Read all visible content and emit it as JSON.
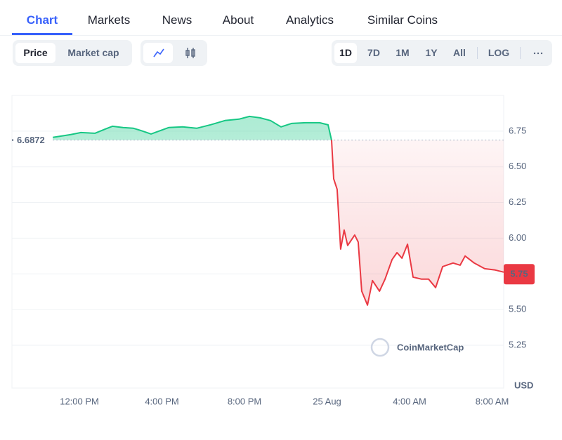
{
  "tabs": [
    "Chart",
    "Markets",
    "News",
    "About",
    "Analytics",
    "Similar Coins"
  ],
  "metric_toggle": [
    "Price",
    "Market cap"
  ],
  "ranges": [
    "1D",
    "7D",
    "1M",
    "1Y",
    "All",
    "LOG"
  ],
  "chart_data": {
    "type": "line",
    "x": [
      -1.29,
      -0.44,
      0.07,
      0.75,
      1.26,
      1.6,
      2.11,
      2.62,
      2.96,
      3.47,
      4.32,
      5.0,
      5.68,
      6.37,
      7.05,
      7.73,
      8.24,
      8.75,
      9.26,
      9.77,
      10.28,
      10.96,
      11.64,
      12.05,
      12.22,
      12.32,
      12.49,
      12.66,
      12.83,
      13.0,
      13.34,
      13.51,
      13.68,
      13.96,
      14.2,
      14.54,
      14.81,
      15.15,
      15.39,
      15.63,
      15.9,
      16.17,
      16.58,
      16.92,
      17.26,
      17.6,
      18.11,
      18.45,
      18.69,
      19.13,
      19.64,
      20.15,
      20.56
    ],
    "series": [
      {
        "name": "Price",
        "up_color": "#16c784",
        "down_color": "#ea3943",
        "values": [
          6.706,
          6.725,
          6.74,
          6.735,
          6.765,
          6.784,
          6.775,
          6.77,
          6.755,
          6.73,
          6.775,
          6.78,
          6.77,
          6.795,
          6.824,
          6.834,
          6.853,
          6.843,
          6.824,
          6.78,
          6.804,
          6.809,
          6.809,
          6.794,
          6.686,
          6.416,
          6.342,
          5.924,
          6.057,
          5.949,
          6.022,
          5.973,
          5.629,
          5.531,
          5.703,
          5.629,
          5.713,
          5.85,
          5.899,
          5.86,
          5.958,
          5.727,
          5.713,
          5.713,
          5.654,
          5.801,
          5.826,
          5.811,
          5.875,
          5.826,
          5.786,
          5.777,
          5.762
        ]
      }
    ],
    "reference_line": 6.6872,
    "current_price": 5.75,
    "y_unit": "USD",
    "watermark": "CoinMarketCap",
    "xlim": [
      -3.27,
      20.56
    ],
    "xticks": [
      {
        "value": 0,
        "label": "12:00 PM"
      },
      {
        "value": 4,
        "label": "4:00 PM"
      },
      {
        "value": 8,
        "label": "8:00 PM"
      },
      {
        "value": 12,
        "label": "25 Aug"
      },
      {
        "value": 16,
        "label": "4:00 AM"
      },
      {
        "value": 20,
        "label": "8:00 AM"
      }
    ],
    "ylim": [
      4.95,
      7.0
    ],
    "yticks": [
      {
        "value": 5.25,
        "label": "5.25"
      },
      {
        "value": 5.5,
        "label": "5.50"
      },
      {
        "value": 5.75,
        "label": "5.75"
      },
      {
        "value": 6,
        "label": "6.00"
      },
      {
        "value": 6.25,
        "label": "6.25"
      },
      {
        "value": 6.5,
        "label": "6.50"
      },
      {
        "value": 6.75,
        "label": "6.75"
      }
    ],
    "grid": true
  }
}
